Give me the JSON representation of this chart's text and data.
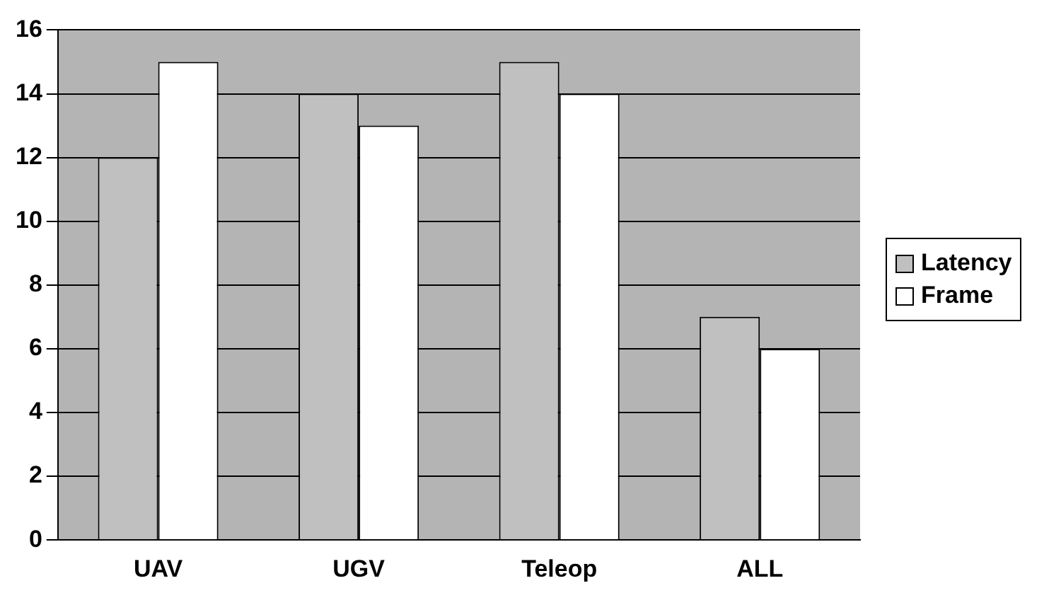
{
  "chart_data": {
    "type": "bar",
    "categories": [
      "UAV",
      "UGV",
      "Teleop",
      "ALL"
    ],
    "series": [
      {
        "name": "Latency",
        "color": "#c0c0c0",
        "values": [
          12,
          14,
          15,
          7
        ]
      },
      {
        "name": "Frame",
        "color": "#ffffff",
        "values": [
          15,
          13,
          14,
          6
        ]
      }
    ],
    "ylim": [
      0,
      16
    ],
    "yticks": [
      0,
      2,
      4,
      6,
      8,
      10,
      12,
      14,
      16
    ],
    "grid": "y",
    "legend": "right"
  }
}
